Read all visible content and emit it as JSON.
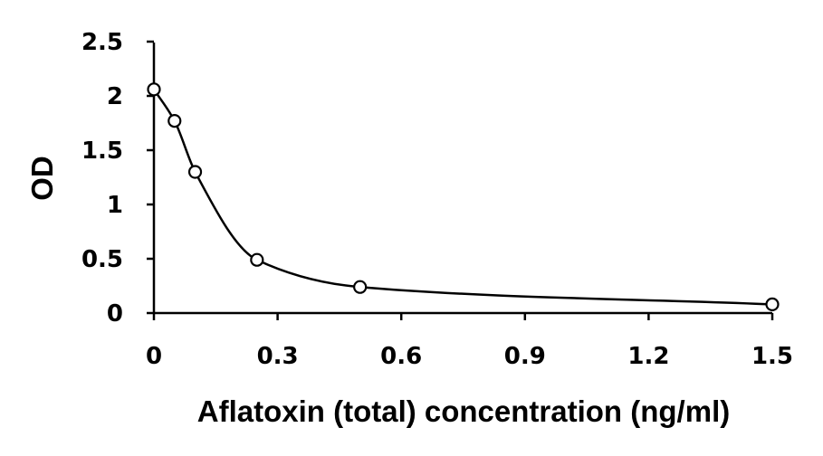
{
  "chart_data": {
    "type": "scatter",
    "title": "",
    "xlabel": "Aflatoxin (total) concentration (ng/ml)",
    "ylabel": "OD",
    "xlim": [
      0,
      1.5
    ],
    "ylim": [
      0,
      2.5
    ],
    "x_ticks": [
      "0",
      "0.3",
      "0.6",
      "0.9",
      "1.2",
      "1.5"
    ],
    "y_ticks": [
      "0",
      "0.5",
      "1",
      "1.5",
      "2",
      "2.5"
    ],
    "grid": false,
    "legend": "none",
    "series": [
      {
        "marker": "open-circle",
        "points": [
          {
            "x": 0,
            "y": 2.06
          },
          {
            "x": 0.05,
            "y": 1.77
          },
          {
            "x": 0.1,
            "y": 1.3
          },
          {
            "x": 0.25,
            "y": 0.49
          },
          {
            "x": 0.5,
            "y": 0.24
          },
          {
            "x": 1.5,
            "y": 0.08
          }
        ]
      }
    ],
    "fit_curve": {
      "style": "smooth-line",
      "color": "#000000"
    }
  }
}
